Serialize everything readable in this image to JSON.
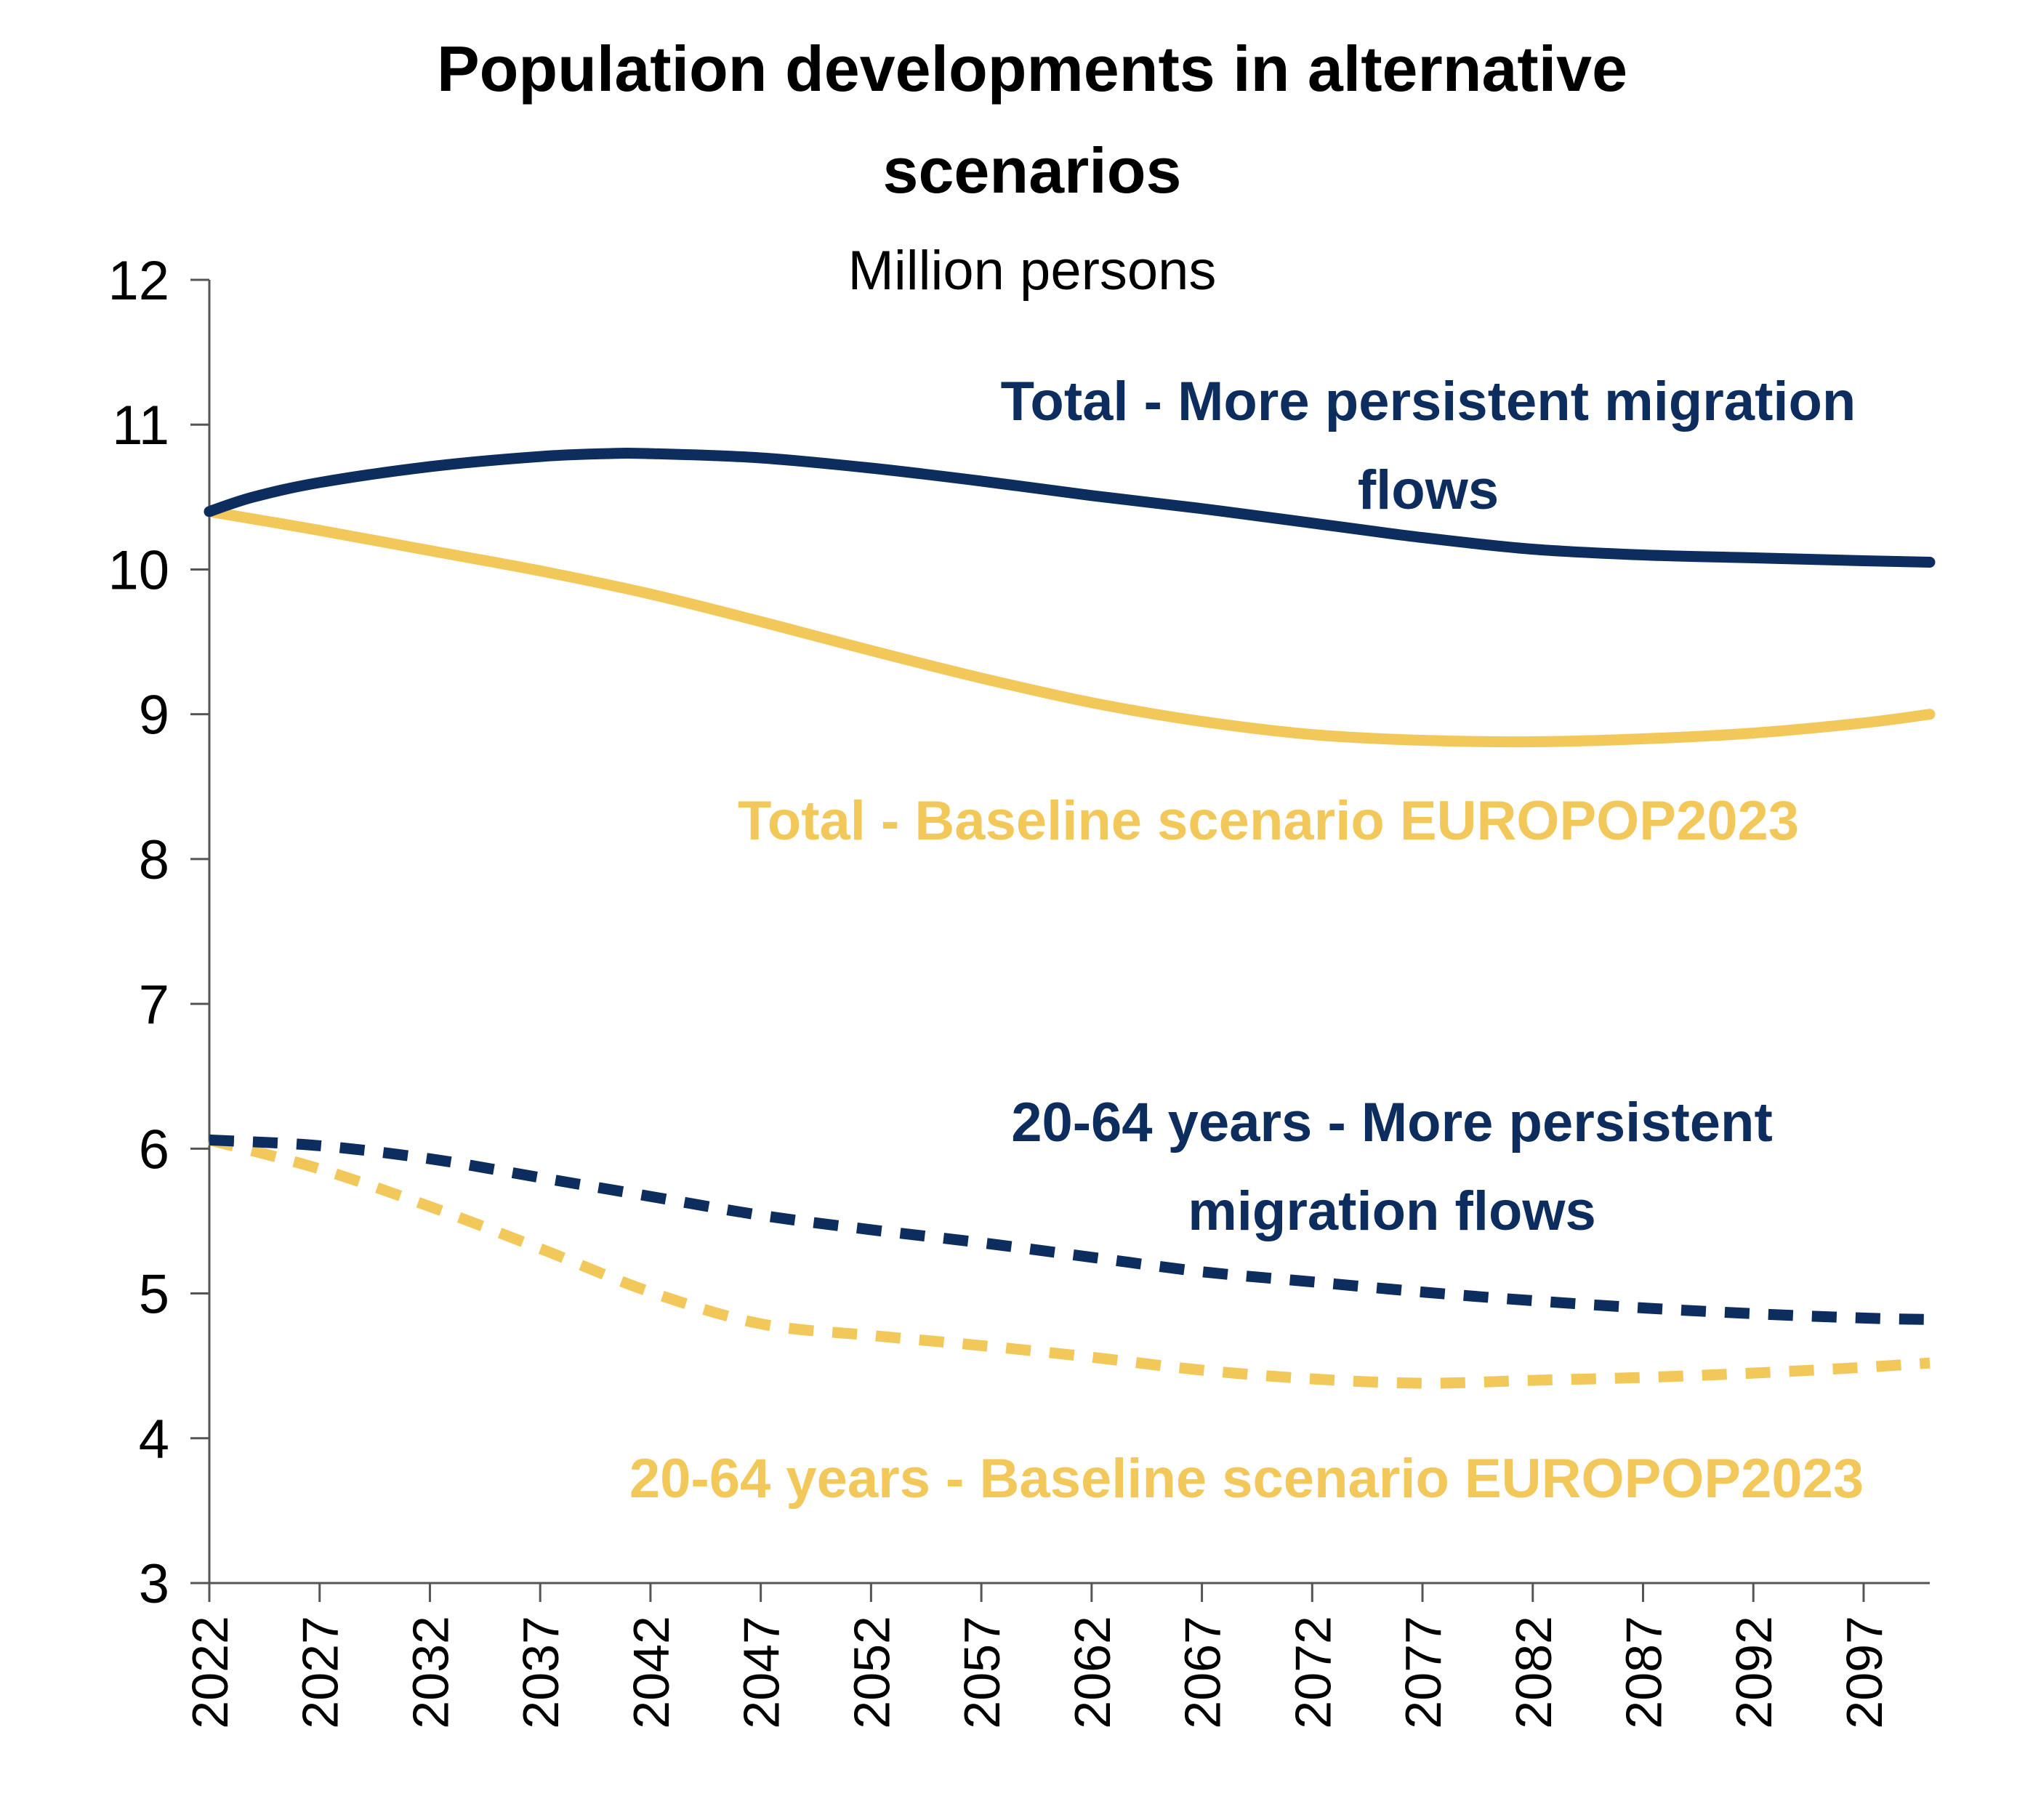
{
  "chart_data": {
    "type": "line",
    "title_lines": [
      "Population developments in alternative",
      "scenarios"
    ],
    "subtitle": "Million persons",
    "ylim": [
      3,
      12
    ],
    "yticks": [
      3,
      4,
      5,
      6,
      7,
      8,
      9,
      10,
      11,
      12
    ],
    "xlim": [
      2022,
      2100
    ],
    "xticks": [
      "2022",
      "2027",
      "2032",
      "2037",
      "2042",
      "2047",
      "2052",
      "2057",
      "2062",
      "2067",
      "2072",
      "2077",
      "2082",
      "2087",
      "2092",
      "2097"
    ],
    "grid": false,
    "legend": "inline labels",
    "series": [
      {
        "name": "Total - More persistent migration flows",
        "label_lines": [
          "Total - More persistent migration",
          "flows"
        ],
        "color": "#0D2D5E",
        "style": "solid",
        "x": [
          2022,
          2024,
          2027,
          2032,
          2037,
          2040,
          2042,
          2047,
          2052,
          2057,
          2062,
          2067,
          2072,
          2077,
          2082,
          2087,
          2092,
          2097,
          2100
        ],
        "y": [
          10.4,
          10.5,
          10.6,
          10.71,
          10.78,
          10.8,
          10.8,
          10.77,
          10.7,
          10.61,
          10.51,
          10.42,
          10.32,
          10.22,
          10.14,
          10.1,
          10.08,
          10.06,
          10.05
        ]
      },
      {
        "name": "Total - Baseline scenario EUROPOP2023",
        "label_lines": [
          "Total - Baseline scenario EUROPOP2023"
        ],
        "color": "#F2C85B",
        "style": "solid",
        "x": [
          2022,
          2027,
          2032,
          2037,
          2042,
          2047,
          2052,
          2057,
          2062,
          2067,
          2072,
          2077,
          2082,
          2087,
          2092,
          2097,
          2100
        ],
        "y": [
          10.4,
          10.27,
          10.13,
          9.99,
          9.83,
          9.64,
          9.44,
          9.25,
          9.08,
          8.95,
          8.86,
          8.82,
          8.81,
          8.83,
          8.87,
          8.94,
          9.0
        ]
      },
      {
        "name": "20-64 years - More persistent migration flows",
        "label_lines": [
          "20-64 years - More persistent",
          "migration flows"
        ],
        "color": "#0D2D5E",
        "style": "dashed",
        "x": [
          2022,
          2027,
          2032,
          2037,
          2042,
          2047,
          2052,
          2057,
          2062,
          2067,
          2072,
          2077,
          2082,
          2087,
          2092,
          2097,
          2100
        ],
        "y": [
          6.06,
          6.02,
          5.93,
          5.8,
          5.67,
          5.54,
          5.44,
          5.35,
          5.25,
          5.15,
          5.08,
          5.01,
          4.95,
          4.9,
          4.86,
          4.83,
          4.82
        ]
      },
      {
        "name": "20-64 years - Baseline scenario EUROPOP2023",
        "label_lines": [
          "20-64 years - Baseline scenario EUROPOP2023"
        ],
        "color": "#F2C85B",
        "style": "dashed",
        "x": [
          2022,
          2027,
          2032,
          2037,
          2042,
          2047,
          2052,
          2057,
          2062,
          2067,
          2072,
          2077,
          2082,
          2087,
          2092,
          2097,
          2100
        ],
        "y": [
          6.06,
          5.86,
          5.6,
          5.31,
          5.01,
          4.79,
          4.71,
          4.64,
          4.56,
          4.47,
          4.41,
          4.38,
          4.4,
          4.42,
          4.45,
          4.49,
          4.52
        ]
      }
    ]
  }
}
